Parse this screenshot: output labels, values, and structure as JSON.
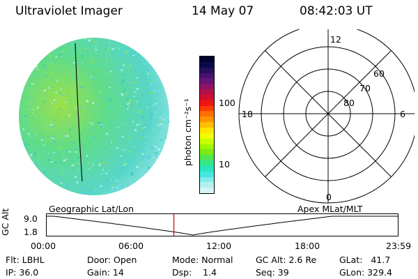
{
  "header": {
    "instrument": "Ultraviolet Imager",
    "date": "14 May 07",
    "time": "08:42:03 UT"
  },
  "colorbar": {
    "unit_label": "photon cm⁻²s⁻¹",
    "tick_labels": [
      "100",
      "10"
    ],
    "colors": [
      "#050032",
      "#0a0a4b",
      "#28105a",
      "#46126e",
      "#641478",
      "#8c1464",
      "#b4104b",
      "#d2102d",
      "#f01414",
      "#ff3c00",
      "#ff6e00",
      "#ff9600",
      "#ffbe00",
      "#ffe600",
      "#f0ff00",
      "#c8ff00",
      "#a0f500",
      "#78eb14",
      "#50e650",
      "#32e68c",
      "#28e6be",
      "#46e6dc",
      "#82ebeb",
      "#b4f0f0",
      "#d8f5f5"
    ]
  },
  "polar_grid": {
    "mlt_labels": {
      "top": "12",
      "left": "18",
      "right": "6",
      "bottom": "0"
    },
    "lat_labels": [
      "60",
      "70",
      "80"
    ]
  },
  "timeline": {
    "left_label": "Geographic Lat/Lon",
    "right_label": "Apex MLat/MLT",
    "y_axis_label": "GC Alt",
    "y_ticks": [
      "9.0",
      "1.8"
    ],
    "x_ticks": [
      "00:00",
      "06:00",
      "12:00",
      "18:00",
      "23:59"
    ],
    "current_time_hours": 8.7
  },
  "status": {
    "filter": "Flt: LBHL",
    "ip": "IP: 36.0",
    "door": "Door: Open",
    "gain": "Gain: 14",
    "mode": "Mode: Normal",
    "dsp": "Dsp:    1.4",
    "gc_alt": "GC Alt: 2.6 Re",
    "seq": "Seq: 39",
    "glat": "GLat:   41.7",
    "glon": "GLon: 329.4"
  },
  "colors": {
    "time_marker": "#cc0000",
    "earth_disk_base": "#7ad896"
  }
}
